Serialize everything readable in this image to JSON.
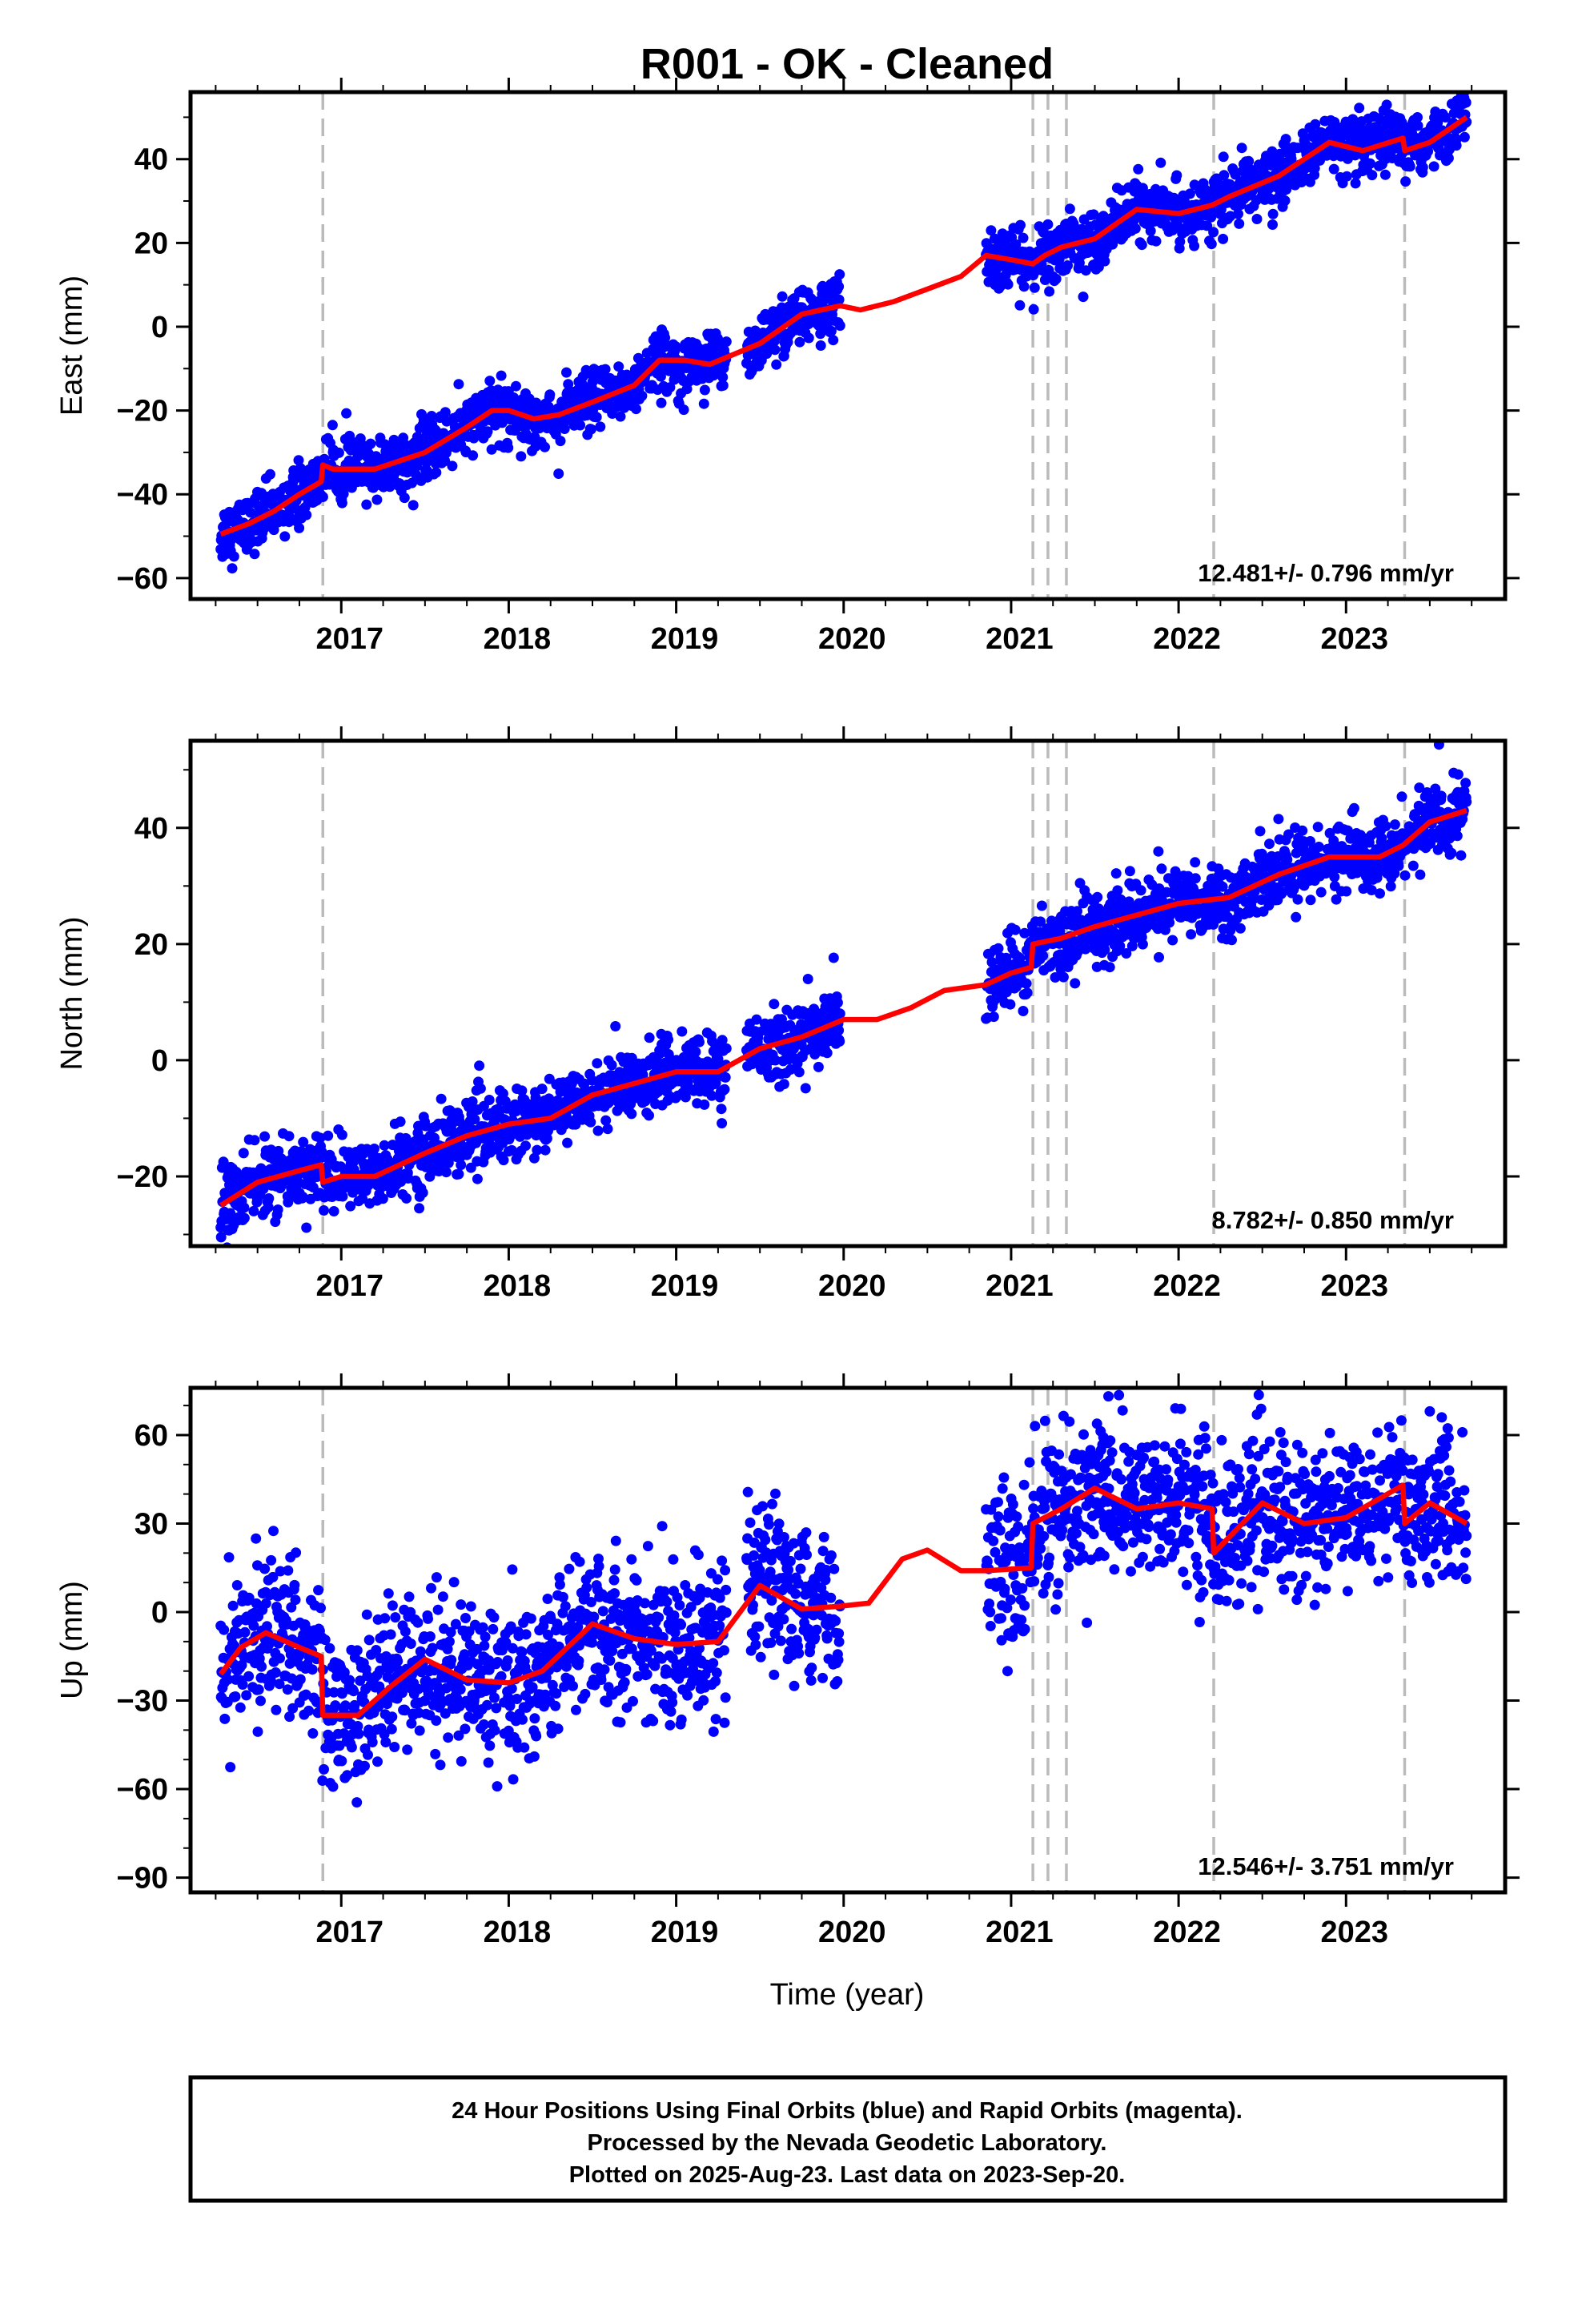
{
  "title": "R001  - OK - Cleaned",
  "xlabel": "Time (year)",
  "x_tick_labels": [
    "2017",
    "2018",
    "2019",
    "2020",
    "2021",
    "2022",
    "2023"
  ],
  "footer": {
    "line1": "24 Hour Positions Using Final Orbits (blue) and Rapid Orbits (magenta).",
    "line2": "Processed by the Nevada Geodetic Laboratory.",
    "line3": "Plotted on 2025-Aug-23. Last data on 2023-Sep-20."
  },
  "colors": {
    "final_orbits": "#0000ff",
    "rapid_orbits": "#ff00ff",
    "model": "#ff0000",
    "step_lines": "#bbbbbb",
    "frame": "#000000"
  },
  "chart_data": [
    {
      "type": "scatter",
      "component": "east",
      "ylabel": "East (mm)",
      "rate_text": "12.481+/- 0.796 mm/yr",
      "xlim": [
        2016.1,
        2023.95
      ],
      "ylim": [
        -65,
        56
      ],
      "yticks": [
        -60,
        -40,
        -20,
        0,
        20,
        40
      ],
      "y_tick_labels": [
        "−60",
        "−40",
        "−20",
        "0",
        "20",
        "40"
      ],
      "step_epochs": [
        2016.89,
        2021.13,
        2021.22,
        2021.33,
        2022.21,
        2023.35
      ],
      "data_segments": [
        [
          2016.28,
          2019.3
        ],
        [
          2019.42,
          2019.98
        ],
        [
          2020.85,
          2023.72
        ]
      ],
      "noise_mm": 3.5,
      "model_series": {
        "name": "model",
        "x": [
          2016.28,
          2016.45,
          2016.6,
          2016.75,
          2016.88,
          2016.89,
          2016.95,
          2017.2,
          2017.5,
          2017.75,
          2017.9,
          2018.0,
          2018.15,
          2018.3,
          2018.5,
          2018.75,
          2018.9,
          2019.05,
          2019.2,
          2019.5,
          2019.75,
          2019.98,
          2020.1,
          2020.3,
          2020.5,
          2020.7,
          2020.85,
          2021.0,
          2021.13,
          2021.2,
          2021.3,
          2021.5,
          2021.75,
          2022.0,
          2022.2,
          2022.3,
          2022.6,
          2022.9,
          2023.1,
          2023.34,
          2023.35,
          2023.5,
          2023.72
        ],
        "y": [
          -49.5,
          -47,
          -44,
          -40,
          -37,
          -33,
          -34,
          -34,
          -30,
          -24,
          -20,
          -20,
          -22,
          -21,
          -18,
          -14,
          -8,
          -8,
          -9,
          -4,
          3,
          5,
          4,
          6,
          9,
          12,
          17,
          16,
          15,
          17,
          19,
          21,
          28,
          27,
          29,
          31,
          36,
          44,
          42,
          45,
          42,
          44,
          50
        ]
      }
    },
    {
      "type": "scatter",
      "component": "north",
      "ylabel": "North (mm)",
      "rate_text": "8.782+/- 0.850 mm/yr",
      "xlim": [
        2016.1,
        2023.95
      ],
      "ylim": [
        -32,
        55
      ],
      "yticks": [
        -20,
        0,
        20,
        40
      ],
      "y_tick_labels": [
        "−20",
        "0",
        "20",
        "40"
      ],
      "step_epochs": [
        2016.89,
        2021.13,
        2021.22,
        2021.33,
        2022.21,
        2023.35
      ],
      "data_segments": [
        [
          2016.28,
          2019.3
        ],
        [
          2019.42,
          2019.98
        ],
        [
          2020.85,
          2023.72
        ]
      ],
      "noise_mm": 3.0,
      "model_series": {
        "name": "model",
        "x": [
          2016.28,
          2016.5,
          2016.75,
          2016.88,
          2016.89,
          2017.0,
          2017.2,
          2017.5,
          2017.75,
          2018.0,
          2018.25,
          2018.5,
          2018.75,
          2019.0,
          2019.25,
          2019.5,
          2019.75,
          2020.0,
          2020.2,
          2020.4,
          2020.6,
          2020.85,
          2021.0,
          2021.12,
          2021.13,
          2021.3,
          2021.5,
          2021.75,
          2022.0,
          2022.3,
          2022.6,
          2022.9,
          2023.2,
          2023.34,
          2023.5,
          2023.72
        ],
        "y": [
          -25,
          -21,
          -19,
          -18,
          -21,
          -20,
          -20,
          -16,
          -13,
          -11,
          -10,
          -6,
          -4,
          -2,
          -2,
          2,
          4,
          7,
          7,
          9,
          12,
          13,
          15,
          16,
          20,
          21,
          23,
          25,
          27,
          28,
          32,
          35,
          35,
          37,
          41,
          43
        ]
      }
    },
    {
      "type": "scatter",
      "component": "up",
      "ylabel": "Up (mm)",
      "rate_text": "12.546+/- 3.751 mm/yr",
      "xlim": [
        2016.1,
        2023.95
      ],
      "ylim": [
        -95,
        76
      ],
      "yticks": [
        -90,
        -60,
        -30,
        0,
        30,
        60
      ],
      "y_tick_labels": [
        "−90",
        "−60",
        "−30",
        "0",
        "30",
        "60"
      ],
      "step_epochs": [
        2016.89,
        2021.13,
        2021.22,
        2021.33,
        2022.21,
        2023.35
      ],
      "data_segments": [
        [
          2016.28,
          2019.3
        ],
        [
          2019.42,
          2019.98
        ],
        [
          2020.85,
          2023.72
        ]
      ],
      "noise_mm": 13.0,
      "model_series": {
        "name": "model",
        "x": [
          2016.28,
          2016.4,
          2016.55,
          2016.75,
          2016.88,
          2016.89,
          2017.1,
          2017.3,
          2017.5,
          2017.75,
          2018.0,
          2018.2,
          2018.5,
          2018.75,
          2019.0,
          2019.25,
          2019.5,
          2019.75,
          2019.98,
          2020.15,
          2020.35,
          2020.5,
          2020.7,
          2020.85,
          2021.12,
          2021.13,
          2021.3,
          2021.5,
          2021.75,
          2022.0,
          2022.2,
          2022.21,
          2022.5,
          2022.75,
          2023.0,
          2023.34,
          2023.35,
          2023.5,
          2023.72
        ],
        "y": [
          -21,
          -12,
          -7,
          -12,
          -15,
          -35,
          -35,
          -25,
          -16,
          -23,
          -24,
          -20,
          -4,
          -9,
          -11,
          -10,
          9,
          1,
          2,
          3,
          18,
          21,
          14,
          14,
          15,
          30,
          35,
          42,
          35,
          37,
          35,
          20,
          37,
          30,
          32,
          43,
          30,
          37,
          30
        ]
      }
    }
  ]
}
